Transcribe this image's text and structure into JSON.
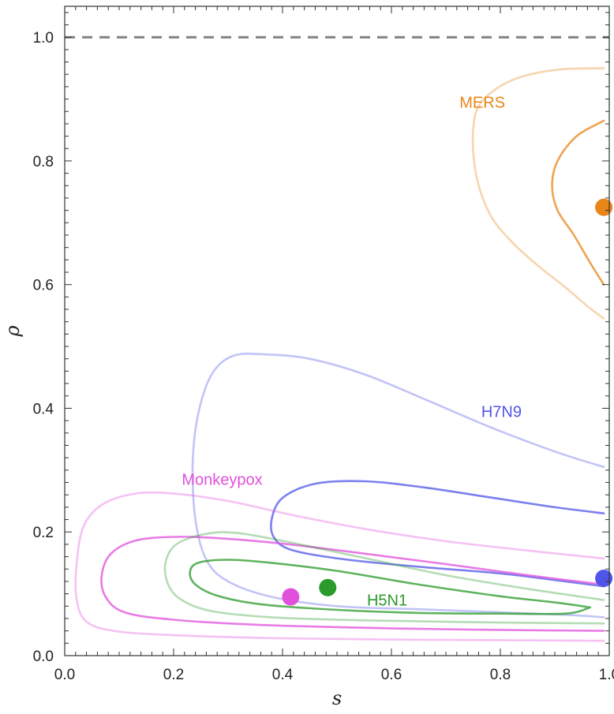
{
  "chart_data": {
    "type": "contour",
    "xlabel": "s",
    "ylabel": "ρ",
    "xlim": [
      0,
      1
    ],
    "ylim": [
      0,
      1.05
    ],
    "x_ticks": [
      "0.0",
      "0.2",
      "0.4",
      "0.6",
      "0.8",
      "1.0"
    ],
    "y_ticks": [
      "0.0",
      "0.2",
      "0.4",
      "0.6",
      "0.8",
      "1.0"
    ],
    "reference_line": {
      "y": 1.0,
      "style": "dashed",
      "color": "#808080"
    },
    "grid": false,
    "series": [
      {
        "name": "MERS",
        "color": "#e8861a",
        "point": [
          0.99,
          0.725
        ],
        "label_pos": [
          0.725,
          0.895
        ],
        "contours": [
          {
            "opacity": 0.35,
            "points": [
              [
                0.99,
                0.95
              ],
              [
                0.9,
                0.947
              ],
              [
                0.82,
                0.93
              ],
              [
                0.765,
                0.895
              ],
              [
                0.75,
                0.85
              ],
              [
                0.755,
                0.78
              ],
              [
                0.78,
                0.715
              ],
              [
                0.82,
                0.67
              ],
              [
                0.87,
                0.63
              ],
              [
                0.92,
                0.595
              ],
              [
                0.96,
                0.565
              ],
              [
                0.99,
                0.545
              ]
            ]
          },
          {
            "opacity": 0.75,
            "points": [
              [
                0.99,
                0.865
              ],
              [
                0.94,
                0.84
              ],
              [
                0.905,
                0.8
              ],
              [
                0.895,
                0.76
              ],
              [
                0.905,
                0.72
              ],
              [
                0.935,
                0.68
              ],
              [
                0.965,
                0.635
              ],
              [
                0.99,
                0.6
              ]
            ]
          }
        ]
      },
      {
        "name": "H7N9",
        "color": "#5055e8",
        "point": [
          0.99,
          0.125
        ],
        "label_pos": [
          0.765,
          0.395
        ],
        "contours": [
          {
            "opacity": 0.35,
            "points": [
              [
                0.99,
                0.305
              ],
              [
                0.9,
                0.33
              ],
              [
                0.78,
                0.37
              ],
              [
                0.66,
                0.415
              ],
              [
                0.55,
                0.455
              ],
              [
                0.45,
                0.48
              ],
              [
                0.37,
                0.487
              ],
              [
                0.31,
                0.485
              ],
              [
                0.27,
                0.455
              ],
              [
                0.245,
                0.39
              ],
              [
                0.235,
                0.31
              ],
              [
                0.24,
                0.22
              ],
              [
                0.26,
                0.155
              ],
              [
                0.3,
                0.12
              ],
              [
                0.38,
                0.095
              ],
              [
                0.5,
                0.08
              ],
              [
                0.65,
                0.075
              ],
              [
                0.8,
                0.07
              ],
              [
                0.92,
                0.066
              ],
              [
                0.99,
                0.062
              ]
            ]
          },
          {
            "opacity": 0.75,
            "points": [
              [
                0.99,
                0.23
              ],
              [
                0.9,
                0.24
              ],
              [
                0.78,
                0.256
              ],
              [
                0.66,
                0.272
              ],
              [
                0.55,
                0.282
              ],
              [
                0.46,
                0.278
              ],
              [
                0.4,
                0.255
              ],
              [
                0.38,
                0.22
              ],
              [
                0.385,
                0.19
              ],
              [
                0.42,
                0.17
              ],
              [
                0.52,
                0.155
              ],
              [
                0.66,
                0.143
              ],
              [
                0.8,
                0.133
              ],
              [
                0.92,
                0.12
              ],
              [
                0.99,
                0.112
              ]
            ]
          }
        ]
      },
      {
        "name": "Monkeypox",
        "color": "#e050dc",
        "point": [
          0.415,
          0.095
        ],
        "label_pos": [
          0.215,
          0.285
        ],
        "contours": [
          {
            "opacity": 0.35,
            "points": [
              [
                0.99,
                0.157
              ],
              [
                0.85,
                0.17
              ],
              [
                0.7,
                0.185
              ],
              [
                0.55,
                0.205
              ],
              [
                0.42,
                0.227
              ],
              [
                0.3,
                0.25
              ],
              [
                0.2,
                0.262
              ],
              [
                0.13,
                0.262
              ],
              [
                0.07,
                0.245
              ],
              [
                0.035,
                0.21
              ],
              [
                0.022,
                0.15
              ],
              [
                0.022,
                0.09
              ],
              [
                0.04,
                0.055
              ],
              [
                0.09,
                0.04
              ],
              [
                0.2,
                0.033
              ],
              [
                0.4,
                0.028
              ],
              [
                0.6,
                0.026
              ],
              [
                0.8,
                0.025
              ],
              [
                0.99,
                0.024
              ]
            ]
          },
          {
            "opacity": 0.75,
            "points": [
              [
                0.99,
                0.115
              ],
              [
                0.85,
                0.13
              ],
              [
                0.7,
                0.148
              ],
              [
                0.55,
                0.165
              ],
              [
                0.4,
                0.181
              ],
              [
                0.28,
                0.19
              ],
              [
                0.2,
                0.192
              ],
              [
                0.13,
                0.186
              ],
              [
                0.085,
                0.165
              ],
              [
                0.068,
                0.13
              ],
              [
                0.075,
                0.095
              ],
              [
                0.11,
                0.07
              ],
              [
                0.2,
                0.058
              ],
              [
                0.35,
                0.05
              ],
              [
                0.55,
                0.045
              ],
              [
                0.75,
                0.042
              ],
              [
                0.99,
                0.04
              ]
            ]
          }
        ]
      },
      {
        "name": "H5N1",
        "color": "#2a9a2a",
        "point": [
          0.483,
          0.11
        ],
        "label_pos": [
          0.555,
          0.09
        ],
        "contours": [
          {
            "opacity": 0.35,
            "points": [
              [
                0.99,
                0.09
              ],
              [
                0.85,
                0.108
              ],
              [
                0.7,
                0.13
              ],
              [
                0.55,
                0.158
              ],
              [
                0.42,
                0.182
              ],
              [
                0.32,
                0.198
              ],
              [
                0.26,
                0.197
              ],
              [
                0.205,
                0.18
              ],
              [
                0.185,
                0.15
              ],
              [
                0.19,
                0.115
              ],
              [
                0.215,
                0.09
              ],
              [
                0.27,
                0.072
              ],
              [
                0.38,
                0.062
              ],
              [
                0.55,
                0.057
              ],
              [
                0.75,
                0.054
              ],
              [
                0.99,
                0.052
              ]
            ]
          },
          {
            "opacity": 0.75,
            "points": [
              [
                0.965,
                0.078
              ],
              [
                0.9,
                0.086
              ],
              [
                0.8,
                0.096
              ],
              [
                0.65,
                0.115
              ],
              [
                0.5,
                0.137
              ],
              [
                0.38,
                0.15
              ],
              [
                0.3,
                0.155
              ],
              [
                0.245,
                0.15
              ],
              [
                0.23,
                0.135
              ],
              [
                0.24,
                0.115
              ],
              [
                0.28,
                0.097
              ],
              [
                0.36,
                0.083
              ],
              [
                0.5,
                0.074
              ],
              [
                0.65,
                0.069
              ],
              [
                0.8,
                0.068
              ],
              [
                0.92,
                0.068
              ],
              [
                0.965,
                0.078
              ]
            ]
          }
        ]
      }
    ]
  }
}
